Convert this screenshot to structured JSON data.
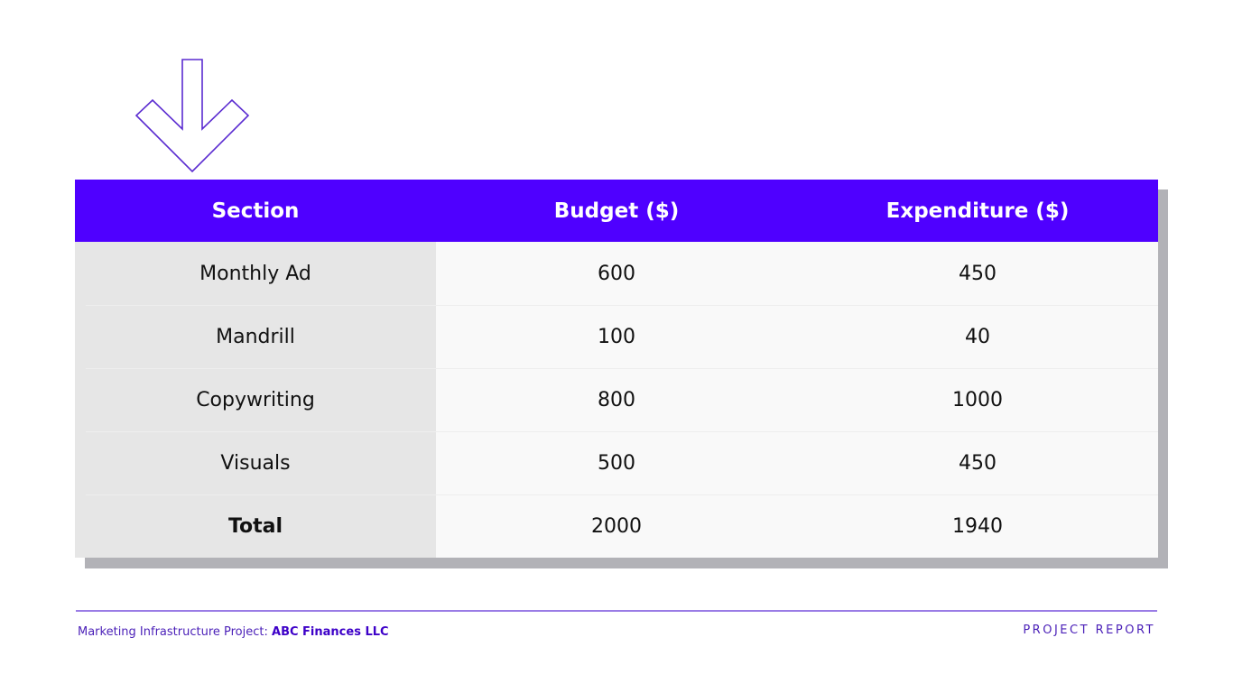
{
  "table": {
    "headers": [
      "Section",
      "Budget ($)",
      "Expenditure ($)"
    ],
    "rows": [
      {
        "section": "Monthly Ad",
        "budget": "600",
        "expenditure": "450"
      },
      {
        "section": "Mandrill",
        "budget": "100",
        "expenditure": "40"
      },
      {
        "section": "Copywriting",
        "budget": "800",
        "expenditure": "1000"
      },
      {
        "section": "Visuals",
        "budget": "500",
        "expenditure": "450"
      },
      {
        "section": "Total",
        "budget": "2000",
        "expenditure": "1940"
      }
    ]
  },
  "footer": {
    "project_label": "Marketing Infrastructure Project:",
    "client": "ABC Finances LLC",
    "report_label": "PROJECT REPORT"
  },
  "colors": {
    "accent": "#4f00ff",
    "arrow_outline": "#5a2bd0"
  },
  "icons": {
    "decoration": "down-arrow-outline-icon"
  }
}
